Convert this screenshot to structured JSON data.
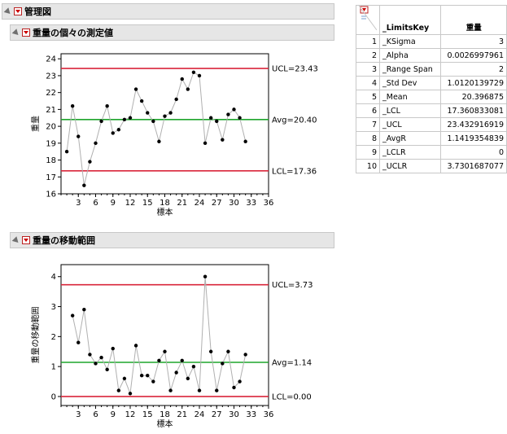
{
  "report": {
    "title": "管理図",
    "section1_title": "重量の個々の測定値",
    "section2_title": "重量の移動範囲"
  },
  "chart_data": [
    {
      "type": "line",
      "name": "individuals",
      "xlabel": "標本",
      "ylabel": "重量",
      "xlim": [
        0,
        36
      ],
      "ylim": [
        16,
        24.3
      ],
      "xticks": [
        3,
        6,
        9,
        12,
        15,
        18,
        21,
        24,
        27,
        30,
        33,
        36
      ],
      "yticks": [
        16,
        17,
        18,
        19,
        20,
        21,
        22,
        23,
        24
      ],
      "x": [
        1,
        2,
        3,
        4,
        5,
        6,
        7,
        8,
        9,
        10,
        11,
        12,
        13,
        14,
        15,
        16,
        17,
        18,
        19,
        20,
        21,
        22,
        23,
        24,
        25,
        26,
        27,
        28,
        29,
        30,
        31,
        32
      ],
      "values": [
        18.5,
        21.2,
        19.4,
        16.5,
        17.9,
        19.0,
        20.3,
        21.2,
        19.6,
        19.8,
        20.4,
        20.5,
        22.2,
        21.5,
        20.8,
        20.3,
        19.1,
        20.6,
        20.8,
        21.6,
        22.8,
        22.2,
        23.2,
        23.0,
        19.0,
        20.5,
        20.3,
        19.2,
        20.7,
        21.0,
        20.5,
        19.1
      ],
      "limits": [
        {
          "label": "UCL=23.43",
          "value": 23.43,
          "color": "#d9263b"
        },
        {
          "label": "Avg=20.40",
          "value": 20.4,
          "color": "#1fa52c"
        },
        {
          "label": "LCL=17.36",
          "value": 17.36,
          "color": "#d9263b"
        }
      ]
    },
    {
      "type": "line",
      "name": "moving-range",
      "xlabel": "標本",
      "ylabel": "重量の移動範囲",
      "xlim": [
        0,
        36
      ],
      "ylim": [
        -0.3,
        4.4
      ],
      "xticks": [
        3,
        6,
        9,
        12,
        15,
        18,
        21,
        24,
        27,
        30,
        33,
        36
      ],
      "yticks": [
        0,
        1,
        2,
        3,
        4
      ],
      "x": [
        2,
        3,
        4,
        5,
        6,
        7,
        8,
        9,
        10,
        11,
        12,
        13,
        14,
        15,
        16,
        17,
        18,
        19,
        20,
        21,
        22,
        23,
        24,
        25,
        26,
        27,
        28,
        29,
        30,
        31,
        32
      ],
      "values": [
        2.7,
        1.8,
        2.9,
        1.4,
        1.1,
        1.3,
        0.9,
        1.6,
        0.2,
        0.6,
        0.1,
        1.7,
        0.7,
        0.7,
        0.5,
        1.2,
        1.5,
        0.2,
        0.8,
        1.2,
        0.6,
        1.0,
        0.2,
        4.0,
        1.5,
        0.2,
        1.1,
        1.5,
        0.3,
        0.5,
        1.4
      ],
      "limits": [
        {
          "label": "UCL=3.73",
          "value": 3.73,
          "color": "#d9263b"
        },
        {
          "label": "Avg=1.14",
          "value": 1.14,
          "color": "#1fa52c"
        },
        {
          "label": "LCL=0.00",
          "value": 0.0,
          "color": "#d9263b"
        }
      ]
    }
  ],
  "table": {
    "headers": [
      "_LimitsKey",
      "重量"
    ],
    "rows": [
      [
        "1",
        "_KSigma",
        "3"
      ],
      [
        "2",
        "_Alpha",
        "0.0026997961"
      ],
      [
        "3",
        "_Range Span",
        "2"
      ],
      [
        "4",
        "_Std Dev",
        "1.0120139729"
      ],
      [
        "5",
        "_Mean",
        "20.396875"
      ],
      [
        "6",
        "_LCL",
        "17.360833081"
      ],
      [
        "7",
        "_UCL",
        "23.432916919"
      ],
      [
        "8",
        "_AvgR",
        "1.1419354839"
      ],
      [
        "9",
        "_LCLR",
        "0"
      ],
      [
        "10",
        "_UCLR",
        "3.7301687077"
      ]
    ]
  }
}
